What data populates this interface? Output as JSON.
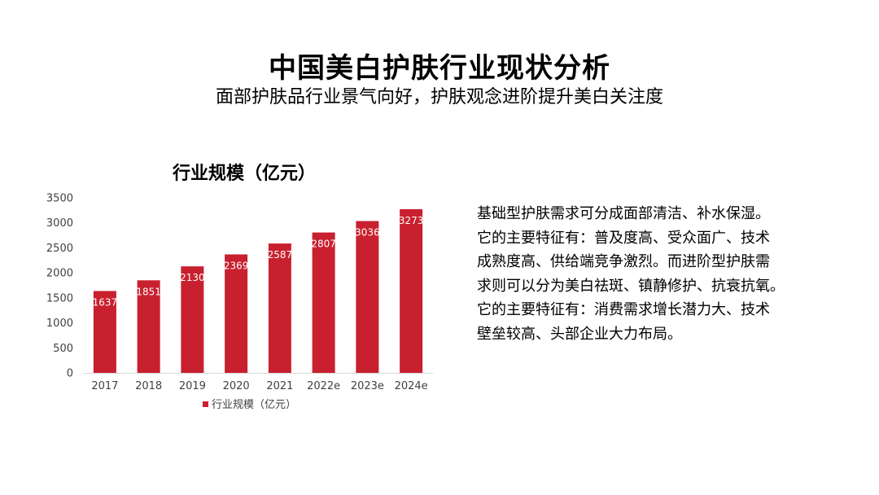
{
  "slide": {
    "title": "中国美白护肤行业现状分析",
    "subtitle": "面部护肤品行业景气向好，护肤观念进阶提升美白关注度"
  },
  "description": {
    "lines": [
      "基础型护肤需求可分成面部清洁、补水保湿。",
      "它的主要特征有：普及度高、受众面广、技术",
      "成熟度高、供给端竞争激烈。而进阶型护肤需",
      "求则可以分为美白祛斑、镇静修护、抗衰抗氧。",
      "它的主要特征有：消费需求增长潜力大、技术",
      "壁垒较高、头部企业大力布局。"
    ]
  },
  "chart_data": {
    "type": "bar",
    "title": "行业规模（亿元）",
    "categories": [
      "2017",
      "2018",
      "2019",
      "2020",
      "2021",
      "2022e",
      "2023e",
      "2024e"
    ],
    "series": [
      {
        "name": "行业规模（亿元）",
        "values": [
          1637,
          1851,
          2130,
          2369,
          2587,
          2807,
          3036,
          3273
        ],
        "color": "#c8202f"
      }
    ],
    "yticks": [
      0,
      500,
      1000,
      1500,
      2000,
      2500,
      3000,
      3500
    ],
    "ylim": [
      0,
      3500
    ],
    "legend": "bottom",
    "grid": false,
    "data_labels": true
  }
}
